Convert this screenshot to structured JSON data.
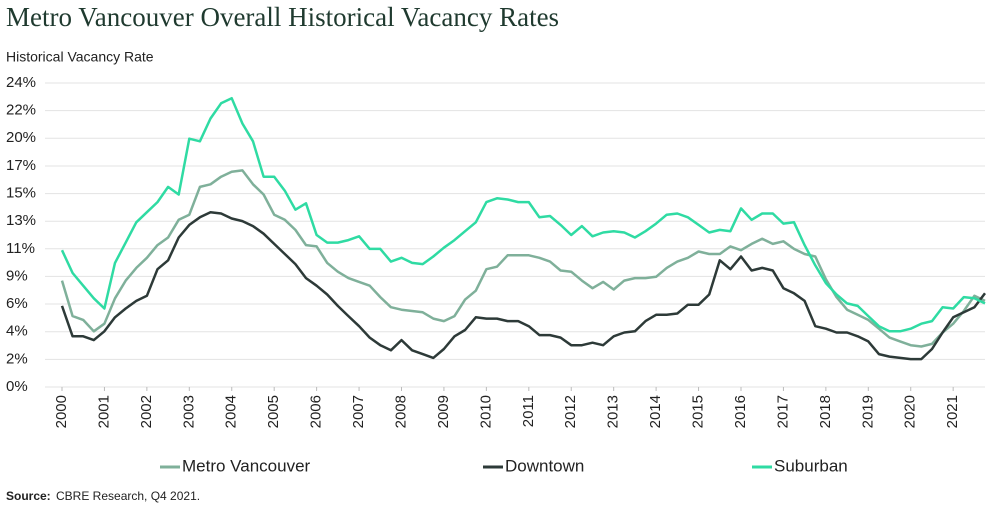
{
  "chart_data": {
    "type": "line",
    "title": "Metro Vancouver Overall Historical Vacancy Rates",
    "subtitle": "Historical Vacancy Rate",
    "source_label": "Source:",
    "source": "CBRE Research, Q4 2021.",
    "x": [
      2000,
      2000.25,
      2000.5,
      2000.75,
      2001,
      2001.25,
      2001.5,
      2001.75,
      2002,
      2002.25,
      2002.5,
      2002.75,
      2003,
      2003.25,
      2003.5,
      2003.75,
      2004,
      2004.25,
      2004.5,
      2004.75,
      2005,
      2005.25,
      2005.5,
      2005.75,
      2006,
      2006.25,
      2006.5,
      2006.75,
      2007,
      2007.25,
      2007.5,
      2007.75,
      2008,
      2008.25,
      2008.5,
      2008.75,
      2009,
      2009.25,
      2009.5,
      2009.75,
      2010,
      2010.25,
      2010.5,
      2010.75,
      2011,
      2011.25,
      2011.5,
      2011.75,
      2012,
      2012.25,
      2012.5,
      2012.75,
      2013,
      2013.25,
      2013.5,
      2013.75,
      2014,
      2014.25,
      2014.5,
      2014.75,
      2015,
      2015.25,
      2015.5,
      2015.75,
      2016,
      2016.25,
      2016.5,
      2016.75,
      2017,
      2017.25,
      2017.5,
      2017.75,
      2018,
      2018.25,
      2018.5,
      2018.75,
      2019,
      2019.25,
      2019.5,
      2019.75,
      2020,
      2020.25,
      2020.5,
      2020.75,
      2021,
      2021.25,
      2021.5,
      2021.75
    ],
    "xlim": [
      2000,
      2021.75
    ],
    "xticks": [
      2000,
      2001,
      2002,
      2003,
      2004,
      2005,
      2006,
      2007,
      2008,
      2009,
      2010,
      2011,
      2012,
      2013,
      2014,
      2015,
      2016,
      2017,
      2018,
      2019,
      2020,
      2021
    ],
    "ylim": [
      0,
      24
    ],
    "yticks": [
      {
        "value": 0,
        "label": "0%"
      },
      {
        "value": 2.18,
        "label": "2%"
      },
      {
        "value": 4.36,
        "label": "4%"
      },
      {
        "value": 6.55,
        "label": "6%"
      },
      {
        "value": 8.73,
        "label": "9%"
      },
      {
        "value": 10.91,
        "label": "11%"
      },
      {
        "value": 13.09,
        "label": "13%"
      },
      {
        "value": 15.27,
        "label": "15%"
      },
      {
        "value": 17.45,
        "label": "17%"
      },
      {
        "value": 19.64,
        "label": "20%"
      },
      {
        "value": 21.82,
        "label": "22%"
      },
      {
        "value": 24,
        "label": "24%"
      }
    ],
    "grid": true,
    "series": [
      {
        "name": "Metro Vancouver",
        "color": "#7fb09a",
        "values": [
          8.4,
          5.6,
          5.3,
          4.4,
          5.0,
          7.0,
          8.4,
          9.4,
          10.2,
          11.2,
          11.8,
          13.2,
          13.6,
          15.8,
          16.0,
          16.6,
          17.0,
          17.1,
          16.0,
          15.2,
          13.6,
          13.2,
          12.4,
          11.2,
          11.1,
          9.8,
          9.1,
          8.6,
          8.3,
          8.0,
          7.1,
          6.3,
          6.1,
          6.0,
          5.9,
          5.4,
          5.2,
          5.6,
          6.9,
          7.6,
          9.3,
          9.5,
          10.4,
          10.4,
          10.4,
          10.2,
          9.9,
          9.2,
          9.1,
          8.4,
          7.8,
          8.3,
          7.7,
          8.4,
          8.6,
          8.6,
          8.7,
          9.4,
          9.9,
          10.2,
          10.7,
          10.5,
          10.5,
          11.1,
          10.8,
          11.3,
          11.7,
          11.3,
          11.5,
          10.9,
          10.5,
          10.3,
          8.5,
          7.1,
          6.1,
          5.7,
          5.3,
          4.6,
          3.9,
          3.6,
          3.3,
          3.2,
          3.4,
          4.3,
          5.0,
          6.0,
          7.2,
          6.8
        ]
      },
      {
        "name": "Downtown",
        "color": "#2d3a38",
        "values": [
          6.4,
          4.0,
          4.0,
          3.7,
          4.4,
          5.5,
          6.2,
          6.8,
          7.2,
          9.3,
          10.0,
          11.8,
          12.8,
          13.4,
          13.8,
          13.7,
          13.3,
          13.1,
          12.7,
          12.1,
          11.3,
          10.5,
          9.7,
          8.6,
          8.0,
          7.3,
          6.4,
          5.6,
          4.8,
          3.9,
          3.3,
          2.9,
          3.7,
          2.9,
          2.6,
          2.3,
          3.0,
          4.0,
          4.5,
          5.5,
          5.4,
          5.4,
          5.2,
          5.2,
          4.8,
          4.1,
          4.1,
          3.9,
          3.3,
          3.3,
          3.5,
          3.3,
          4.0,
          4.3,
          4.4,
          5.2,
          5.7,
          5.7,
          5.8,
          6.5,
          6.5,
          7.3,
          10.0,
          9.3,
          10.3,
          9.2,
          9.4,
          9.2,
          7.8,
          7.4,
          6.8,
          4.8,
          4.6,
          4.3,
          4.3,
          4.0,
          3.6,
          2.6,
          2.4,
          2.3,
          2.2,
          2.2,
          3.0,
          4.3,
          5.5,
          5.9,
          6.3,
          7.4
        ]
      },
      {
        "name": "Suburban",
        "color": "#2fdba3",
        "values": [
          10.8,
          9.0,
          8.0,
          7.0,
          6.2,
          9.8,
          11.4,
          13.0,
          13.8,
          14.6,
          15.8,
          15.2,
          19.6,
          19.4,
          21.2,
          22.4,
          22.8,
          20.8,
          19.4,
          16.6,
          16.6,
          15.5,
          14.0,
          14.5,
          12.0,
          11.4,
          11.4,
          11.6,
          11.9,
          10.9,
          10.9,
          9.9,
          10.2,
          9.8,
          9.7,
          10.3,
          11.0,
          11.6,
          12.3,
          13.0,
          14.6,
          14.9,
          14.8,
          14.6,
          14.6,
          13.4,
          13.5,
          12.8,
          12.0,
          12.7,
          11.9,
          12.2,
          12.3,
          12.2,
          11.8,
          12.3,
          12.9,
          13.6,
          13.7,
          13.4,
          12.8,
          12.2,
          12.4,
          12.3,
          14.1,
          13.2,
          13.7,
          13.7,
          12.9,
          13.0,
          11.2,
          9.6,
          8.2,
          7.3,
          6.6,
          6.4,
          5.6,
          4.8,
          4.4,
          4.4,
          4.6,
          5.0,
          5.2,
          6.3,
          6.2,
          7.1,
          7.0,
          6.6
        ]
      }
    ]
  }
}
